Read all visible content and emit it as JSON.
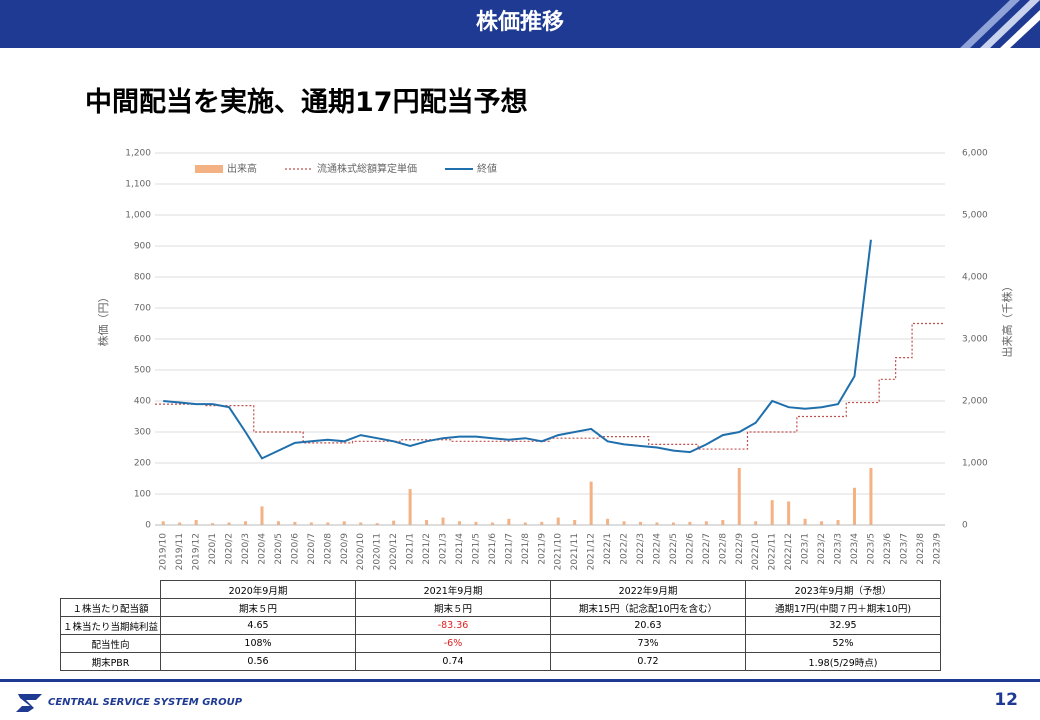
{
  "header": {
    "title": "株価推移"
  },
  "headline": "中間配当を実施、通期17円配当予想",
  "chart_data": {
    "type": "bar-line",
    "y_label": "株価（円）",
    "y2_label": "出来高（千株）",
    "categories": [
      "2019/10",
      "2019/11",
      "2019/12",
      "2020/1",
      "2020/2",
      "2020/3",
      "2020/4",
      "2020/5",
      "2020/6",
      "2020/7",
      "2020/8",
      "2020/9",
      "2020/10",
      "2020/11",
      "2020/12",
      "2021/1",
      "2021/2",
      "2021/3",
      "2021/4",
      "2021/5",
      "2021/6",
      "2021/7",
      "2021/8",
      "2021/9",
      "2021/10",
      "2021/11",
      "2021/12",
      "2022/1",
      "2022/2",
      "2022/3",
      "2022/4",
      "2022/5",
      "2022/6",
      "2022/7",
      "2022/8",
      "2022/9",
      "2022/10",
      "2022/11",
      "2022/12",
      "2023/1",
      "2023/2",
      "2023/3",
      "2023/4",
      "2023/5",
      "2023/6",
      "2023/7",
      "2023/8",
      "2023/9"
    ],
    "series": [
      {
        "name": "出来高",
        "color": "#f4b183",
        "kind": "bar",
        "axis": "y2",
        "values": [
          60,
          40,
          80,
          30,
          40,
          60,
          300,
          60,
          50,
          40,
          40,
          60,
          40,
          30,
          70,
          580,
          80,
          120,
          60,
          50,
          40,
          100,
          40,
          50,
          120,
          80,
          700,
          100,
          60,
          50,
          40,
          40,
          50,
          60,
          80,
          920,
          60,
          400,
          380,
          100,
          60,
          80,
          600,
          920,
          null,
          null,
          null,
          null
        ]
      },
      {
        "name": "流通株式総額算定単価",
        "color": "#c0504d",
        "kind": "step",
        "values": [
          390,
          390,
          390,
          385,
          385,
          385,
          300,
          300,
          300,
          265,
          265,
          265,
          270,
          270,
          270,
          275,
          275,
          275,
          270,
          270,
          270,
          270,
          270,
          270,
          280,
          280,
          280,
          285,
          285,
          285,
          260,
          260,
          260,
          245,
          245,
          245,
          300,
          300,
          300,
          350,
          350,
          350,
          395,
          395,
          470,
          540,
          650,
          650
        ]
      },
      {
        "name": "終値",
        "color": "#1f6fad",
        "kind": "line",
        "values": [
          400,
          395,
          390,
          390,
          380,
          300,
          215,
          240,
          265,
          270,
          275,
          270,
          290,
          280,
          270,
          255,
          270,
          280,
          285,
          285,
          280,
          275,
          280,
          270,
          290,
          300,
          310,
          270,
          260,
          255,
          250,
          240,
          235,
          260,
          290,
          300,
          330,
          400,
          380,
          375,
          380,
          390,
          480,
          920,
          null,
          null,
          null,
          null
        ]
      }
    ],
    "ylim": [
      0,
      1200
    ],
    "yticks": [
      0,
      100,
      200,
      300,
      400,
      500,
      600,
      700,
      800,
      900,
      {
        "value": 1000,
        "label": "1,000"
      },
      {
        "value": 1100,
        "label": "1,100"
      },
      {
        "value": 1200,
        "label": "1,200"
      }
    ],
    "y2lim": [
      0,
      6000
    ],
    "y2ticks": [
      0,
      {
        "value": 1000,
        "label": "1,000"
      },
      {
        "value": 2000,
        "label": "2,000"
      },
      {
        "value": 3000,
        "label": "3,000"
      },
      {
        "value": 4000,
        "label": "4,000"
      },
      {
        "value": 5000,
        "label": "5,000"
      },
      {
        "value": 6000,
        "label": "6,000"
      }
    ],
    "grid": true
  },
  "table": {
    "columns": [
      "2020年9月期",
      "2021年9月期",
      "2022年9月期",
      "2023年9月期（予想）"
    ],
    "rows": [
      [
        "１株当たり配当額",
        "期末５円",
        "期末５円",
        "期末15円（記念配10円を含む）",
        "通期17円(中間７円＋期末10円)"
      ],
      [
        "１株当たり当期純利益",
        "4.65",
        "-83.36",
        "20.63",
        "32.95"
      ],
      [
        "配当性向",
        "108%",
        "-6%",
        "73%",
        "52%"
      ],
      [
        "期末PBR",
        "0.56",
        "0.74",
        "0.72",
        "1.98(5/29時点)"
      ]
    ]
  },
  "footer": {
    "company": "CENTRAL SERVICE SYSTEM GROUP",
    "page": "12"
  }
}
